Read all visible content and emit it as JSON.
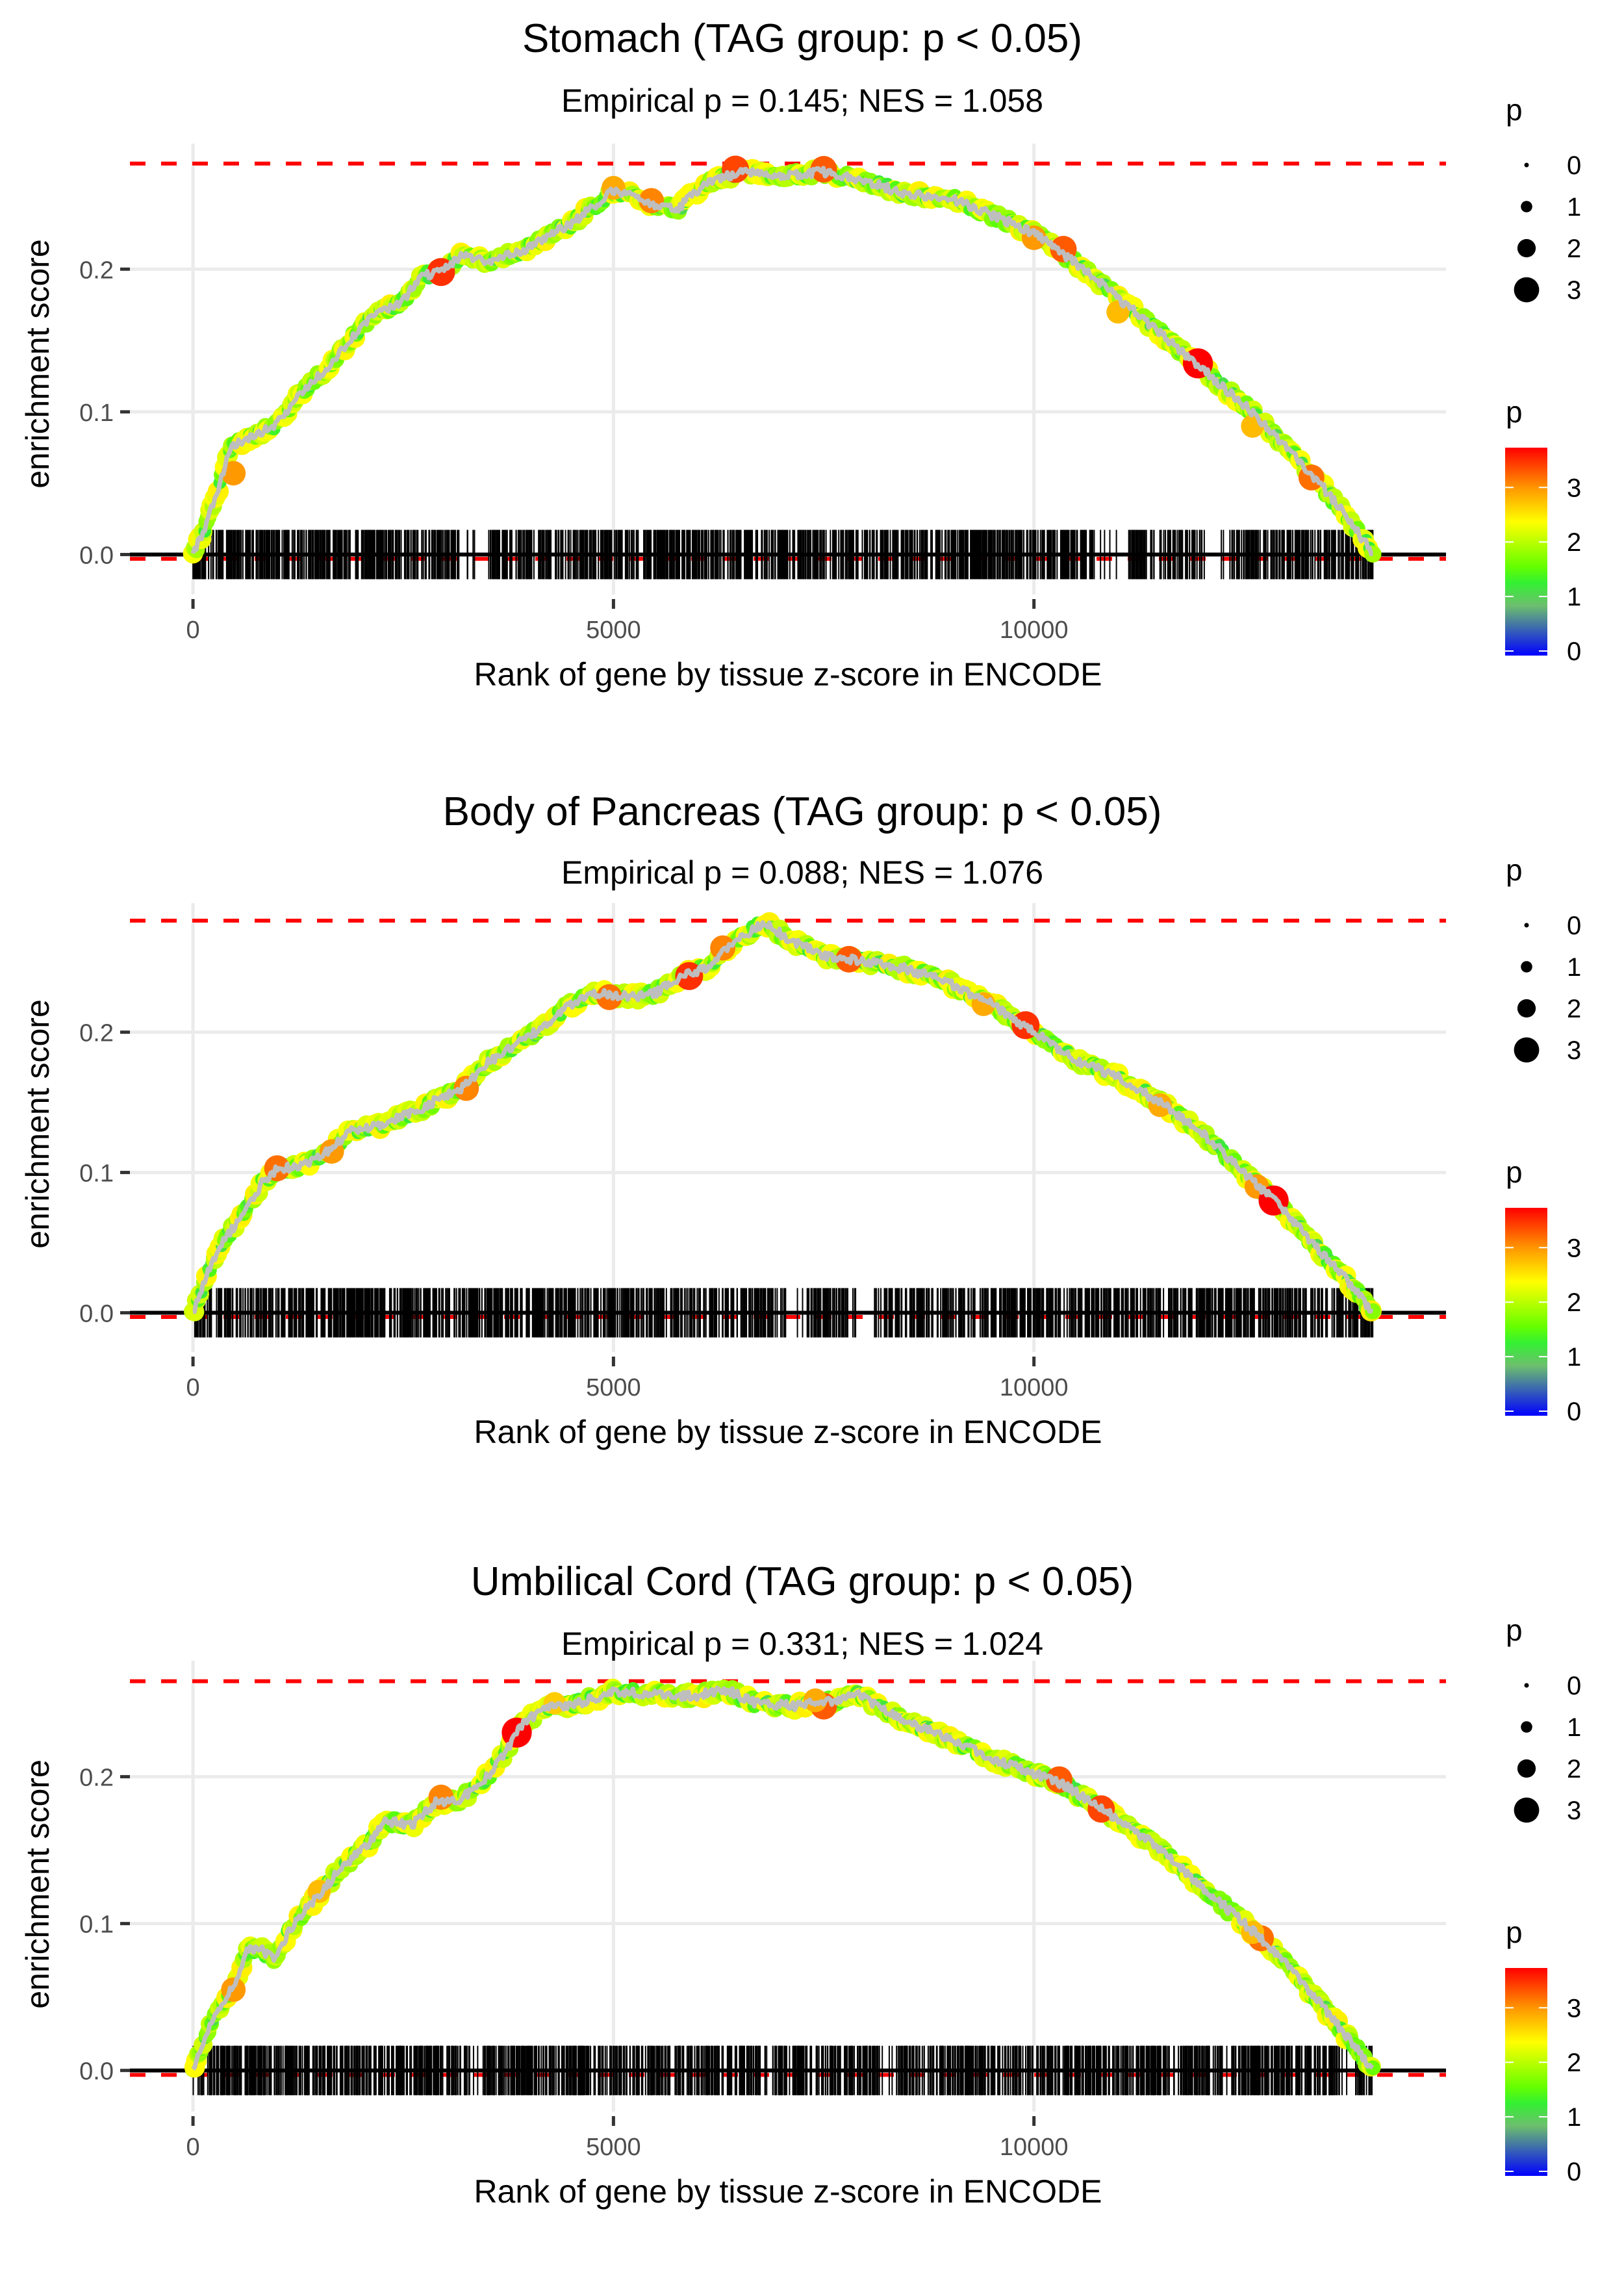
{
  "chart_data": [
    {
      "type": "line",
      "title": "Stomach (TAG group: p < 0.05)",
      "subtitle": "Empirical p = 0.145; NES = 1.058",
      "xlabel": "Rank of gene by tissue z-score in ENCODE",
      "ylabel": "enrichment score",
      "x_ticks": [
        0,
        5000,
        10000
      ],
      "x_tick_labels": [
        "0",
        "5000",
        "10000"
      ],
      "y_ticks": [
        0.0,
        0.1,
        0.2
      ],
      "y_tick_labels": [
        "0.0",
        "0.1",
        "0.2"
      ],
      "xlim": [
        -750,
        14900
      ],
      "ylim": [
        -0.028,
        0.288
      ],
      "max_es": 0.274,
      "min_es": -0.003,
      "n_genes": 14030,
      "grid": true,
      "curve": [
        [
          0,
          0.0
        ],
        [
          150,
          0.02
        ],
        [
          300,
          0.045
        ],
        [
          450,
          0.075
        ],
        [
          700,
          0.082
        ],
        [
          1000,
          0.092
        ],
        [
          1300,
          0.115
        ],
        [
          1600,
          0.13
        ],
        [
          1900,
          0.152
        ],
        [
          2200,
          0.17
        ],
        [
          2500,
          0.178
        ],
        [
          2700,
          0.194
        ],
        [
          3000,
          0.2
        ],
        [
          3200,
          0.21
        ],
        [
          3500,
          0.205
        ],
        [
          4000,
          0.215
        ],
        [
          4500,
          0.232
        ],
        [
          5000,
          0.255
        ],
        [
          5400,
          0.247
        ],
        [
          5750,
          0.242
        ],
        [
          6100,
          0.26
        ],
        [
          6500,
          0.268
        ],
        [
          7000,
          0.266
        ],
        [
          7500,
          0.268
        ],
        [
          8000,
          0.262
        ],
        [
          8500,
          0.252
        ],
        [
          9000,
          0.25
        ],
        [
          9500,
          0.238
        ],
        [
          10000,
          0.225
        ],
        [
          10300,
          0.213
        ],
        [
          10800,
          0.19
        ],
        [
          11300,
          0.165
        ],
        [
          11900,
          0.135
        ],
        [
          12500,
          0.105
        ],
        [
          13000,
          0.075
        ],
        [
          13400,
          0.05
        ],
        [
          13800,
          0.02
        ],
        [
          14030,
          0.0
        ]
      ],
      "highlights": [
        {
          "rank": 480,
          "es": 0.057,
          "p": 3.0
        },
        {
          "rank": 2950,
          "es": 0.198,
          "p": 3.5
        },
        {
          "rank": 5000,
          "es": 0.257,
          "p": 2.9
        },
        {
          "rank": 5450,
          "es": 0.248,
          "p": 3.1
        },
        {
          "rank": 6450,
          "es": 0.27,
          "p": 3.4
        },
        {
          "rank": 7500,
          "es": 0.27,
          "p": 3.3
        },
        {
          "rank": 10000,
          "es": 0.222,
          "p": 3.0
        },
        {
          "rank": 10350,
          "es": 0.214,
          "p": 3.3
        },
        {
          "rank": 11000,
          "es": 0.17,
          "p": 2.8
        },
        {
          "rank": 11950,
          "es": 0.134,
          "p": 3.8
        },
        {
          "rank": 12600,
          "es": 0.09,
          "p": 2.8
        },
        {
          "rank": 13300,
          "es": 0.054,
          "p": 3.2
        }
      ],
      "rug": {
        "n_ticks": 1400,
        "gaps": [
          [
            3200,
            3500
          ],
          [
            10700,
            11100
          ],
          [
            12000,
            12300
          ]
        ]
      }
    },
    {
      "type": "line",
      "title": "Body of Pancreas (TAG group: p < 0.05)",
      "subtitle": "Empirical p = 0.088; NES = 1.076",
      "xlabel": "Rank of gene by tissue z-score in ENCODE",
      "ylabel": "enrichment score",
      "x_ticks": [
        0,
        5000,
        10000
      ],
      "x_tick_labels": [
        "0",
        "5000",
        "10000"
      ],
      "y_ticks": [
        0.0,
        0.1,
        0.2
      ],
      "y_tick_labels": [
        "0.0",
        "0.1",
        "0.2"
      ],
      "xlim": [
        -750,
        14900
      ],
      "ylim": [
        -0.028,
        0.292
      ],
      "max_es": 0.2795,
      "min_es": -0.003,
      "n_genes": 14030,
      "grid": true,
      "curve": [
        [
          0,
          0.0
        ],
        [
          150,
          0.025
        ],
        [
          350,
          0.05
        ],
        [
          600,
          0.07
        ],
        [
          850,
          0.095
        ],
        [
          1000,
          0.102
        ],
        [
          1300,
          0.105
        ],
        [
          1600,
          0.115
        ],
        [
          1900,
          0.13
        ],
        [
          2300,
          0.135
        ],
        [
          2700,
          0.145
        ],
        [
          3000,
          0.155
        ],
        [
          3200,
          0.16
        ],
        [
          3500,
          0.178
        ],
        [
          3800,
          0.19
        ],
        [
          4200,
          0.205
        ],
        [
          4500,
          0.22
        ],
        [
          4800,
          0.228
        ],
        [
          5200,
          0.225
        ],
        [
          5500,
          0.228
        ],
        [
          5800,
          0.24
        ],
        [
          6100,
          0.245
        ],
        [
          6400,
          0.262
        ],
        [
          6800,
          0.279
        ],
        [
          7100,
          0.265
        ],
        [
          7500,
          0.255
        ],
        [
          8000,
          0.25
        ],
        [
          8500,
          0.245
        ],
        [
          9000,
          0.235
        ],
        [
          9500,
          0.22
        ],
        [
          10000,
          0.2
        ],
        [
          10500,
          0.18
        ],
        [
          11000,
          0.168
        ],
        [
          11500,
          0.15
        ],
        [
          12000,
          0.128
        ],
        [
          12500,
          0.1
        ],
        [
          12900,
          0.078
        ],
        [
          13300,
          0.05
        ],
        [
          13700,
          0.025
        ],
        [
          14030,
          0.0
        ]
      ],
      "highlights": [
        {
          "rank": 1000,
          "es": 0.103,
          "p": 3.2
        },
        {
          "rank": 1650,
          "es": 0.115,
          "p": 3.0
        },
        {
          "rank": 3250,
          "es": 0.16,
          "p": 3.1
        },
        {
          "rank": 4950,
          "es": 0.225,
          "p": 3.2
        },
        {
          "rank": 5900,
          "es": 0.24,
          "p": 3.5
        },
        {
          "rank": 6300,
          "es": 0.26,
          "p": 3.1
        },
        {
          "rank": 7800,
          "es": 0.252,
          "p": 3.3
        },
        {
          "rank": 9400,
          "es": 0.22,
          "p": 2.9
        },
        {
          "rank": 9900,
          "es": 0.205,
          "p": 3.5
        },
        {
          "rank": 11500,
          "es": 0.148,
          "p": 2.9
        },
        {
          "rank": 12650,
          "es": 0.09,
          "p": 3.0
        },
        {
          "rank": 12850,
          "es": 0.08,
          "p": 3.8
        }
      ],
      "rug": {
        "n_ticks": 1400,
        "gaps": [
          [
            7050,
            7300
          ],
          [
            7900,
            8100
          ]
        ]
      }
    },
    {
      "type": "line",
      "title": "Umbilical Cord (TAG group: p < 0.05)",
      "subtitle": "Empirical p = 0.331; NES = 1.024",
      "xlabel": "Rank of gene by tissue z-score in ENCODE",
      "ylabel": "enrichment score",
      "x_ticks": [
        0,
        5000,
        10000
      ],
      "x_tick_labels": [
        "0",
        "5000",
        "10000"
      ],
      "y_ticks": [
        0.0,
        0.1,
        0.2
      ],
      "y_tick_labels": [
        "0.0",
        "0.1",
        "0.2"
      ],
      "xlim": [
        -750,
        14900
      ],
      "ylim": [
        -0.028,
        0.279
      ],
      "max_es": 0.265,
      "min_es": -0.003,
      "n_genes": 14030,
      "grid": true,
      "curve": [
        [
          0,
          0.0
        ],
        [
          150,
          0.025
        ],
        [
          350,
          0.045
        ],
        [
          500,
          0.06
        ],
        [
          650,
          0.082
        ],
        [
          800,
          0.083
        ],
        [
          950,
          0.076
        ],
        [
          1200,
          0.1
        ],
        [
          1500,
          0.12
        ],
        [
          1800,
          0.14
        ],
        [
          2100,
          0.155
        ],
        [
          2300,
          0.17
        ],
        [
          2600,
          0.167
        ],
        [
          2900,
          0.183
        ],
        [
          3200,
          0.185
        ],
        [
          3500,
          0.2
        ],
        [
          3700,
          0.215
        ],
        [
          3900,
          0.235
        ],
        [
          4200,
          0.247
        ],
        [
          4600,
          0.25
        ],
        [
          5000,
          0.258
        ],
        [
          5500,
          0.256
        ],
        [
          6000,
          0.255
        ],
        [
          6300,
          0.26
        ],
        [
          6700,
          0.25
        ],
        [
          7200,
          0.248
        ],
        [
          7600,
          0.252
        ],
        [
          7900,
          0.256
        ],
        [
          8400,
          0.24
        ],
        [
          8900,
          0.228
        ],
        [
          9400,
          0.215
        ],
        [
          10000,
          0.202
        ],
        [
          10400,
          0.193
        ],
        [
          10900,
          0.175
        ],
        [
          11400,
          0.155
        ],
        [
          11900,
          0.13
        ],
        [
          12400,
          0.105
        ],
        [
          12800,
          0.085
        ],
        [
          13200,
          0.06
        ],
        [
          13600,
          0.032
        ],
        [
          14030,
          0.0
        ]
      ],
      "highlights": [
        {
          "rank": 480,
          "es": 0.055,
          "p": 3.0
        },
        {
          "rank": 1500,
          "es": 0.122,
          "p": 2.8
        },
        {
          "rank": 2950,
          "es": 0.186,
          "p": 3.1
        },
        {
          "rank": 3850,
          "es": 0.23,
          "p": 3.8
        },
        {
          "rank": 4300,
          "es": 0.25,
          "p": 2.7
        },
        {
          "rank": 7500,
          "es": 0.248,
          "p": 3.3
        },
        {
          "rank": 7400,
          "es": 0.252,
          "p": 2.9
        },
        {
          "rank": 10300,
          "es": 0.198,
          "p": 3.3
        },
        {
          "rank": 10800,
          "es": 0.178,
          "p": 3.4
        },
        {
          "rank": 12700,
          "es": 0.09,
          "p": 3.2
        },
        {
          "rank": 12600,
          "es": 0.094,
          "p": 2.8
        }
      ],
      "rug": {
        "n_ticks": 1400,
        "gaps": [
          [
            3300,
            3450
          ],
          [
            8200,
            8350
          ]
        ]
      }
    }
  ],
  "legend": {
    "size_title": "p",
    "size_values": [
      0,
      1,
      2,
      3
    ],
    "size_labels": [
      "0",
      "1",
      "2",
      "3"
    ],
    "color_title": "p",
    "color_ticks": [
      0,
      1,
      2,
      3
    ],
    "color_labels": [
      "0",
      "1",
      "2",
      "3"
    ],
    "color_range": [
      0,
      3.73
    ],
    "color_stops": [
      {
        "value": 0.0,
        "color": "#0000ff"
      },
      {
        "value": 0.9,
        "color": "#6dbf6d"
      },
      {
        "value": 1.3,
        "color": "#33f033"
      },
      {
        "value": 1.6,
        "color": "#66ff00"
      },
      {
        "value": 2.4,
        "color": "#ffff00"
      },
      {
        "value": 3.0,
        "color": "#ff9900"
      },
      {
        "value": 3.73,
        "color": "#ff0000"
      }
    ]
  },
  "colors": {
    "max_line": "#ff0000",
    "zero_line": "#000000",
    "curve": "#bebebe",
    "grid": "#ebebeb",
    "rug": "#000000"
  }
}
